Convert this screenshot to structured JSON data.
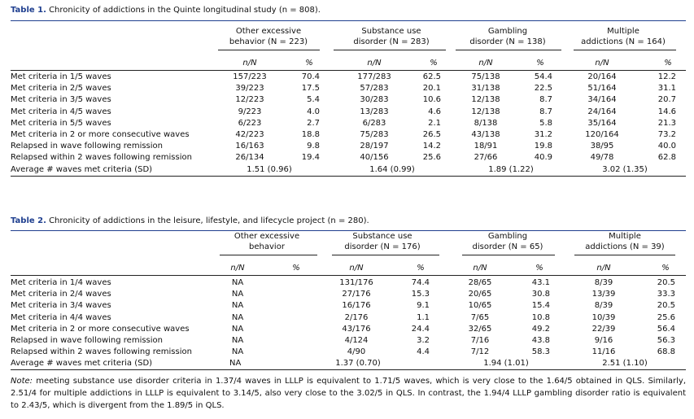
{
  "table1": {
    "label": "Table 1.",
    "caption": "Chronicity of addictions in the Quinte longitudinal study (n = 808).",
    "groups": [
      {
        "line1": "Other excessive",
        "line2": "behavior (N = 223)"
      },
      {
        "line1": "Substance use",
        "line2": "disorder (N = 283)"
      },
      {
        "line1": "Gambling",
        "line2": "disorder (N = 138)"
      },
      {
        "line1": "Multiple",
        "line2": "addictions (N = 164)"
      }
    ],
    "subheaders": [
      "n/N",
      "%"
    ],
    "rows": [
      {
        "label": "Met criteria in 1/5 waves",
        "cells": [
          "157/223",
          "70.4",
          "177/283",
          "62.5",
          "75/138",
          "54.4",
          "20/164",
          "12.2"
        ]
      },
      {
        "label": "Met criteria in 2/5 waves",
        "cells": [
          "39/223",
          "17.5",
          "57/283",
          "20.1",
          "31/138",
          "22.5",
          "51/164",
          "31.1"
        ]
      },
      {
        "label": "Met criteria in 3/5 waves",
        "cells": [
          "12/223",
          "5.4",
          "30/283",
          "10.6",
          "12/138",
          "8.7",
          "34/164",
          "20.7"
        ]
      },
      {
        "label": "Met criteria in 4/5 waves",
        "cells": [
          "9/223",
          "4.0",
          "13/283",
          "4.6",
          "12/138",
          "8.7",
          "24/164",
          "14.6"
        ]
      },
      {
        "label": "Met criteria in 5/5 waves",
        "cells": [
          "6/223",
          "2.7",
          "6/283",
          "2.1",
          "8/138",
          "5.8",
          "35/164",
          "21.3"
        ]
      },
      {
        "label": "Met criteria in 2 or more consecutive waves",
        "cells": [
          "42/223",
          "18.8",
          "75/283",
          "26.5",
          "43/138",
          "31.2",
          "120/164",
          "73.2"
        ]
      },
      {
        "label": "Relapsed in wave following remission",
        "cells": [
          "16/163",
          "9.8",
          "28/197",
          "14.2",
          "18/91",
          "19.8",
          "38/95",
          "40.0"
        ]
      },
      {
        "label": "Relapsed within 2 waves following remission",
        "cells": [
          "26/134",
          "19.4",
          "40/156",
          "25.6",
          "27/66",
          "40.9",
          "49/78",
          "62.8"
        ]
      }
    ],
    "avg": {
      "label": "Average # waves met criteria (SD)",
      "values": [
        "1.51 (0.96)",
        "1.64 (0.99)",
        "1.89 (1.22)",
        "3.02 (1.35)"
      ]
    }
  },
  "table2": {
    "label": "Table 2.",
    "caption": "Chronicity of addictions in the leisure, lifestyle, and lifecycle project (n = 280).",
    "groups": [
      {
        "line1": "Other excessive",
        "line2": "behavior"
      },
      {
        "line1": "Substance use",
        "line2": "disorder (N = 176)"
      },
      {
        "line1": "Gambling",
        "line2": "disorder (N = 65)"
      },
      {
        "line1": "Multiple",
        "line2": "addictions (N = 39)"
      }
    ],
    "subheaders": [
      "n/N",
      "%"
    ],
    "rows": [
      {
        "label": "Met criteria in 1/4 waves",
        "cells": [
          "NA",
          "",
          "131/176",
          "74.4",
          "28/65",
          "43.1",
          "8/39",
          "20.5"
        ]
      },
      {
        "label": "Met criteria in 2/4 waves",
        "cells": [
          "NA",
          "",
          "27/176",
          "15.3",
          "20/65",
          "30.8",
          "13/39",
          "33.3"
        ]
      },
      {
        "label": "Met criteria in 3/4 waves",
        "cells": [
          "NA",
          "",
          "16/176",
          "9.1",
          "10/65",
          "15.4",
          "8/39",
          "20.5"
        ]
      },
      {
        "label": "Met criteria in 4/4 waves",
        "cells": [
          "NA",
          "",
          "2/176",
          "1.1",
          "7/65",
          "10.8",
          "10/39",
          "25.6"
        ]
      },
      {
        "label": "Met criteria in 2 or more consecutive waves",
        "cells": [
          "NA",
          "",
          "43/176",
          "24.4",
          "32/65",
          "49.2",
          "22/39",
          "56.4"
        ]
      },
      {
        "label": "Relapsed in wave following remission",
        "cells": [
          "NA",
          "",
          "4/124",
          "3.2",
          "7/16",
          "43.8",
          "9/16",
          "56.3"
        ]
      },
      {
        "label": "Relapsed within 2 waves following remission",
        "cells": [
          "NA",
          "",
          "4/90",
          "4.4",
          "7/12",
          "58.3",
          "11/16",
          "68.8"
        ]
      }
    ],
    "avg": {
      "label": "Average # waves met criteria (SD)",
      "values": [
        "NA",
        "1.37 (0.70)",
        "1.94 (1.01)",
        "2.51 (1.10)"
      ]
    }
  },
  "note": {
    "label": "Note:",
    "text": "meeting substance use disorder criteria in 1.37/4 waves in LLLP is equivalent to 1.71/5 waves, which is very close to the 1.64/5 obtained in QLS. Similarly, 2.51/4 for multiple addictions in LLLP is equivalent to 3.14/5, also very close to the 3.02/5 in QLS. In contrast, the 1.94/4 LLLP gambling disorder ratio is equivalent to 2.43/5, which is divergent from the 1.89/5 in QLS."
  }
}
